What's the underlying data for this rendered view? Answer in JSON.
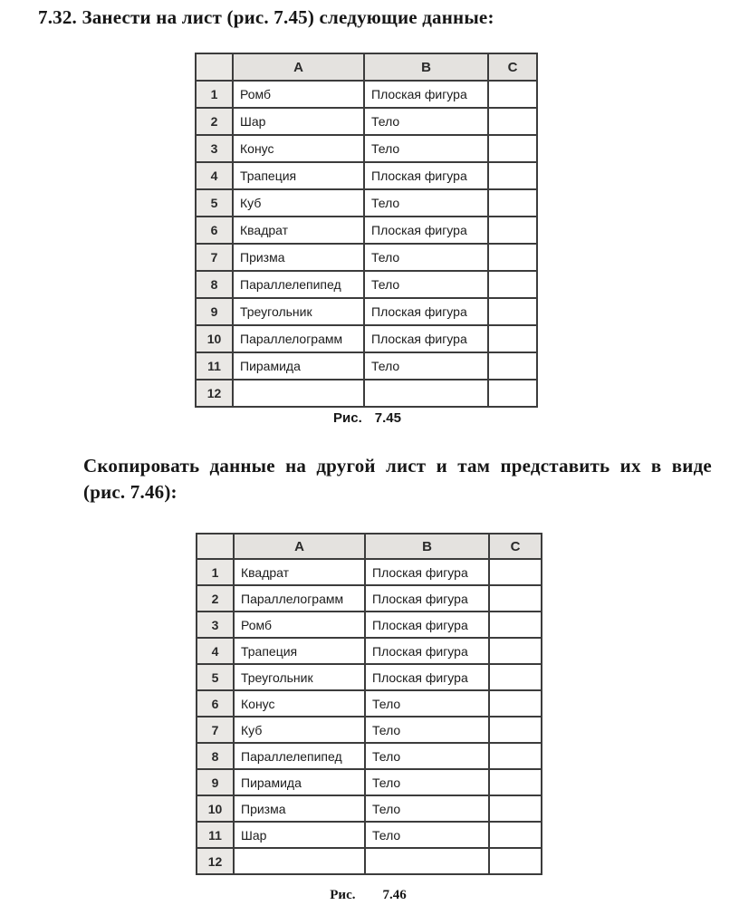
{
  "page": {
    "task_title": "7.32. Занести на лист (рис. 7.45) следующие данные:",
    "instruction_line1": "Скопировать данные на другой лист и там представить их в виде",
    "instruction_line2": "(рис. 7.46):"
  },
  "colors": {
    "grid_border": "#3c3c3c",
    "header_fill": "#e4e2df",
    "row_number_fill": "#eae8e5",
    "text": "#161616"
  },
  "table1": {
    "caption_label": "Рис.",
    "caption_number": "7.45",
    "columns": [
      "A",
      "B",
      "C"
    ],
    "rows": [
      {
        "n": "1",
        "a": "Ромб",
        "b": "Плоская фигура",
        "c": ""
      },
      {
        "n": "2",
        "a": "Шар",
        "b": "Тело",
        "c": ""
      },
      {
        "n": "3",
        "a": "Конус",
        "b": "Тело",
        "c": ""
      },
      {
        "n": "4",
        "a": "Трапеция",
        "b": "Плоская фигура",
        "c": ""
      },
      {
        "n": "5",
        "a": "Куб",
        "b": "Тело",
        "c": ""
      },
      {
        "n": "6",
        "a": "Квадрат",
        "b": "Плоская фигура",
        "c": ""
      },
      {
        "n": "7",
        "a": "Призма",
        "b": "Тело",
        "c": ""
      },
      {
        "n": "8",
        "a": "Параллелепипед",
        "b": "Тело",
        "c": ""
      },
      {
        "n": "9",
        "a": "Треугольник",
        "b": "Плоская  фигура",
        "c": ""
      },
      {
        "n": "10",
        "a": "Параллелограмм",
        "b": "Плоская фигура",
        "c": ""
      },
      {
        "n": "11",
        "a": "Пирамида",
        "b": "Тело",
        "c": ""
      },
      {
        "n": "12",
        "a": "",
        "b": "",
        "c": ""
      }
    ]
  },
  "table2": {
    "caption_label": "Рис.",
    "caption_number": "7.46",
    "columns": [
      "A",
      "B",
      "C"
    ],
    "rows": [
      {
        "n": "1",
        "a": "Квадрат",
        "b": "Плоская фигура",
        "c": ""
      },
      {
        "n": "2",
        "a": "Параллелограмм",
        "b": "Плоская  фигура",
        "c": ""
      },
      {
        "n": "3",
        "a": "Ромб",
        "b": "Плоская фигура",
        "c": ""
      },
      {
        "n": "4",
        "a": "Трапеция",
        "b": "Плоская фигура",
        "c": ""
      },
      {
        "n": "5",
        "a": "Треугольник",
        "b": "Плоская фигура",
        "c": ""
      },
      {
        "n": "6",
        "a": "Конус",
        "b": "Тело",
        "c": ""
      },
      {
        "n": "7",
        "a": "Куб",
        "b": "Тело",
        "c": ""
      },
      {
        "n": "8",
        "a": "Параллелепипед",
        "b": "Тело",
        "c": ""
      },
      {
        "n": "9",
        "a": "Пирамида",
        "b": "Тело",
        "c": ""
      },
      {
        "n": "10",
        "a": "Призма",
        "b": "Тело",
        "c": ""
      },
      {
        "n": "11",
        "a": "Шар",
        "b": "Тело",
        "c": ""
      },
      {
        "n": "12",
        "a": "",
        "b": "",
        "c": ""
      }
    ]
  }
}
